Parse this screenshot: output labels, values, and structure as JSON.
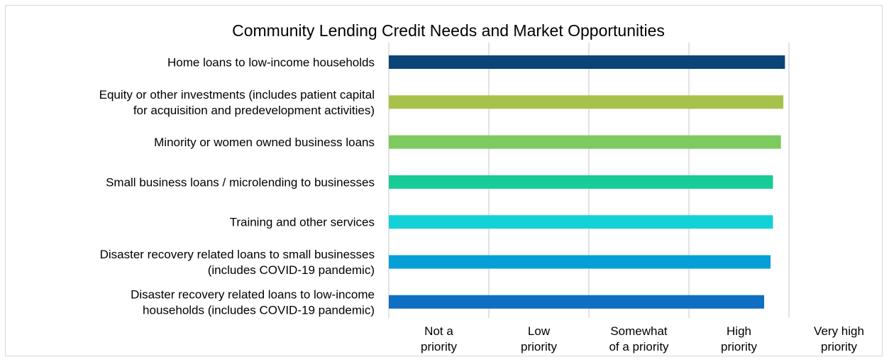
{
  "chart_data": {
    "type": "bar",
    "orientation": "horizontal",
    "title": "Community Lending Credit Needs and Market Opportunities",
    "xlabel": "",
    "ylabel": "",
    "xlim": [
      1,
      5
    ],
    "grid": true,
    "legend": "none",
    "categories": [
      [
        "Home loans to low-income households"
      ],
      [
        "Equity or other investments (includes patient capital",
        "for acquisition and predevelopment activities)"
      ],
      [
        "Minority or women owned business loans"
      ],
      [
        "Small business loans / microlending to businesses"
      ],
      [
        "Training and other services"
      ],
      [
        "Disaster recovery related loans to small businesses",
        "(includes COVID-19 pandemic)"
      ],
      [
        "Disaster recovery related loans to low-income",
        "households (includes COVID-19 pandemic)"
      ]
    ],
    "values": [
      4.95,
      4.93,
      4.9,
      4.8,
      4.8,
      4.77,
      4.69
    ],
    "colors": [
      "#0b4476",
      "#a6c24a",
      "#7dca5f",
      "#17cc96",
      "#12d2d8",
      "#059fd7",
      "#0e6fc3"
    ],
    "x_ticks": [
      {
        "value": 1,
        "lines": [
          "Not a",
          "priority"
        ]
      },
      {
        "value": 2,
        "lines": [
          "Low",
          "priority"
        ]
      },
      {
        "value": 3,
        "lines": [
          "Somewhat",
          "of a priority"
        ]
      },
      {
        "value": 4,
        "lines": [
          "High",
          "priority"
        ]
      },
      {
        "value": 5,
        "lines": [
          "Very high",
          "priority"
        ]
      }
    ]
  }
}
